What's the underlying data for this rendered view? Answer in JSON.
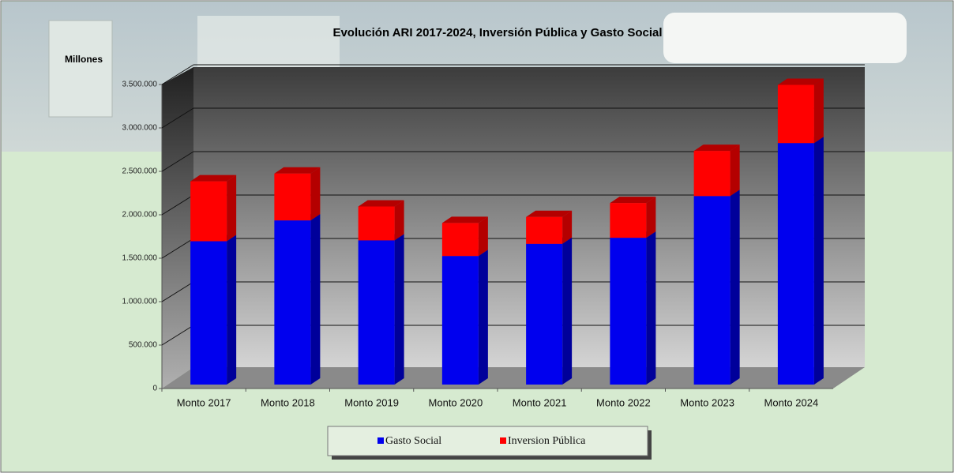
{
  "chart_data": {
    "type": "stacked-bar-3d",
    "title": "Evolución ARI 2017-2024,  Inversión Pública y  Gasto Social",
    "y_label": "Millones",
    "categories": [
      "Monto 2017",
      "Monto 2018",
      "Monto 2019",
      "Monto 2020",
      "Monto 2021",
      "Monto 2022",
      "Monto 2023",
      "Monto 2024"
    ],
    "series": [
      {
        "name": "Gasto Social",
        "color": "#0000ee",
        "values": [
          1650000,
          1890000,
          1660000,
          1480000,
          1620000,
          1690000,
          2170000,
          2780000
        ]
      },
      {
        "name": "Inversion Pública",
        "color": "#ff0000",
        "values": [
          690000,
          540000,
          390000,
          380000,
          310000,
          400000,
          520000,
          670000
        ]
      }
    ],
    "ylim": [
      0,
      3500000
    ],
    "yticks": [
      0,
      {
        "value": 500000,
        "label": "500.000"
      },
      {
        "value": 1000000,
        "label": "1.000.000"
      },
      {
        "value": 1500000,
        "label": "1.500.000"
      },
      {
        "value": 2000000,
        "label": "2.000.000"
      },
      {
        "value": 2500000,
        "label": "2.500.000"
      },
      {
        "value": 3000000,
        "label": "3.000.000"
      },
      {
        "value": 3500000,
        "label": "3.500.000"
      }
    ],
    "grid": true
  }
}
